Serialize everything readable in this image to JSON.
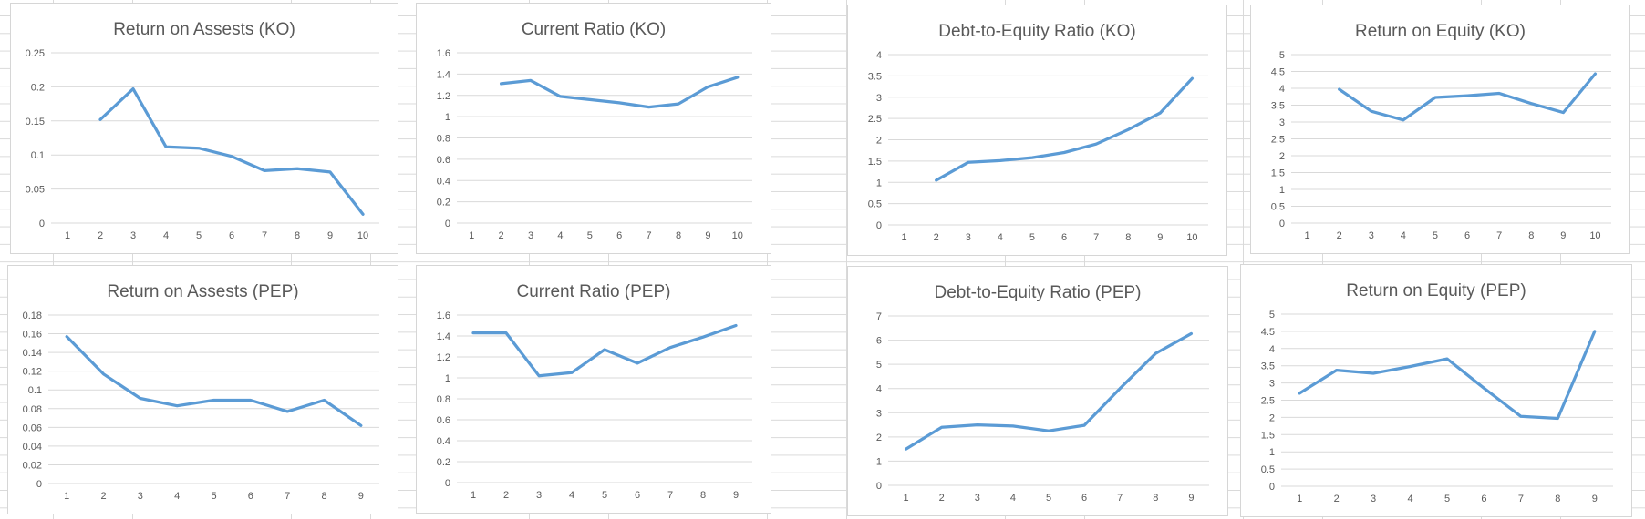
{
  "app": {
    "surface": "excel-worksheet",
    "description_colors": {
      "series_line": "#5B9BD5",
      "chart_gridline": "#D9D9D9",
      "chart_border": "#D6D6D6",
      "sheet_gridline": "#DADADA",
      "text": "#595959"
    }
  },
  "chart_data": [
    {
      "type": "line",
      "title": "Return on Assests (KO)",
      "categories": [
        "1",
        "2",
        "3",
        "4",
        "5",
        "6",
        "7",
        "8",
        "9",
        "10"
      ],
      "values": [
        null,
        0.152,
        0.197,
        0.112,
        0.11,
        0.098,
        0.077,
        0.08,
        0.075,
        0.013
      ],
      "ylim": [
        0,
        0.25
      ],
      "yticks": [
        "0",
        "0.05",
        "0.1",
        "0.15",
        "0.2",
        "0.25"
      ],
      "xlabel": "",
      "ylabel": "",
      "grid": true,
      "legend": "none"
    },
    {
      "type": "line",
      "title": "Current Ratio (KO)",
      "categories": [
        "1",
        "2",
        "3",
        "4",
        "5",
        "6",
        "7",
        "8",
        "9",
        "10"
      ],
      "values": [
        null,
        1.31,
        1.34,
        1.19,
        1.16,
        1.13,
        1.09,
        1.12,
        1.28,
        1.37
      ],
      "ylim": [
        0,
        1.6
      ],
      "yticks": [
        "0",
        "0.2",
        "0.4",
        "0.6",
        "0.8",
        "1",
        "1.2",
        "1.4",
        "1.6"
      ],
      "xlabel": "",
      "ylabel": "",
      "grid": true,
      "legend": "none"
    },
    {
      "type": "line",
      "title": "Debt-to-Equity Ratio (KO)",
      "categories": [
        "1",
        "2",
        "3",
        "4",
        "5",
        "6",
        "7",
        "8",
        "9",
        "10"
      ],
      "values": [
        null,
        1.05,
        1.47,
        1.51,
        1.58,
        1.7,
        1.9,
        2.24,
        2.63,
        3.44
      ],
      "ylim": [
        0,
        4
      ],
      "yticks": [
        "0",
        "0.5",
        "1",
        "1.5",
        "2",
        "2.5",
        "3",
        "3.5",
        "4"
      ],
      "xlabel": "",
      "ylabel": "",
      "grid": true,
      "legend": "none"
    },
    {
      "type": "line",
      "title": "Return on Equity (KO)",
      "categories": [
        "1",
        "2",
        "3",
        "4",
        "5",
        "6",
        "7",
        "8",
        "9",
        "10"
      ],
      "values": [
        null,
        3.97,
        3.32,
        3.06,
        3.73,
        3.78,
        3.85,
        3.55,
        3.28,
        4.43
      ],
      "ylim": [
        0,
        5
      ],
      "yticks": [
        "0",
        "0.5",
        "1",
        "1.5",
        "2",
        "2.5",
        "3",
        "3.5",
        "4",
        "4.5",
        "5"
      ],
      "xlabel": "",
      "ylabel": "",
      "grid": true,
      "legend": "none"
    },
    {
      "type": "line",
      "title": "Return on Assests (PEP)",
      "categories": [
        "1",
        "2",
        "3",
        "4",
        "5",
        "6",
        "7",
        "8",
        "9"
      ],
      "values": [
        0.157,
        0.117,
        0.091,
        0.083,
        0.089,
        0.089,
        0.077,
        0.089,
        0.062
      ],
      "ylim": [
        0,
        0.18
      ],
      "yticks": [
        "0",
        "0.02",
        "0.04",
        "0.06",
        "0.08",
        "0.1",
        "0.12",
        "0.14",
        "0.16",
        "0.18"
      ],
      "xlabel": "",
      "ylabel": "",
      "grid": true,
      "legend": "none"
    },
    {
      "type": "line",
      "title": "Current Ratio (PEP)",
      "categories": [
        "1",
        "2",
        "3",
        "4",
        "5",
        "6",
        "7",
        "8",
        "9"
      ],
      "values": [
        1.43,
        1.43,
        1.02,
        1.05,
        1.27,
        1.14,
        1.29,
        1.39,
        1.5
      ],
      "ylim": [
        0,
        1.6
      ],
      "yticks": [
        "0",
        "0.2",
        "0.4",
        "0.6",
        "0.8",
        "1",
        "1.2",
        "1.4",
        "1.6"
      ],
      "xlabel": "",
      "ylabel": "",
      "grid": true,
      "legend": "none"
    },
    {
      "type": "line",
      "title": "Debt-to-Equity Ratio (PEP)",
      "categories": [
        "1",
        "2",
        "3",
        "4",
        "5",
        "6",
        "7",
        "8",
        "9"
      ],
      "values": [
        1.5,
        2.4,
        2.5,
        2.45,
        2.25,
        2.48,
        4.0,
        5.45,
        6.27
      ],
      "ylim": [
        0,
        7
      ],
      "yticks": [
        "0",
        "1",
        "2",
        "3",
        "4",
        "5",
        "6",
        "7"
      ],
      "xlabel": "",
      "ylabel": "",
      "grid": true,
      "legend": "none"
    },
    {
      "type": "line",
      "title": "Return on Equity (PEP)",
      "categories": [
        "1",
        "2",
        "3",
        "4",
        "5",
        "6",
        "7",
        "8",
        "9"
      ],
      "values": [
        2.7,
        3.37,
        3.28,
        3.48,
        3.7,
        2.85,
        2.03,
        1.97,
        4.5
      ],
      "ylim": [
        0,
        5
      ],
      "yticks": [
        "0",
        "0.5",
        "1",
        "1.5",
        "2",
        "2.5",
        "3",
        "3.5",
        "4",
        "4.5",
        "5"
      ],
      "xlabel": "",
      "ylabel": "",
      "grid": true,
      "legend": "none"
    }
  ]
}
